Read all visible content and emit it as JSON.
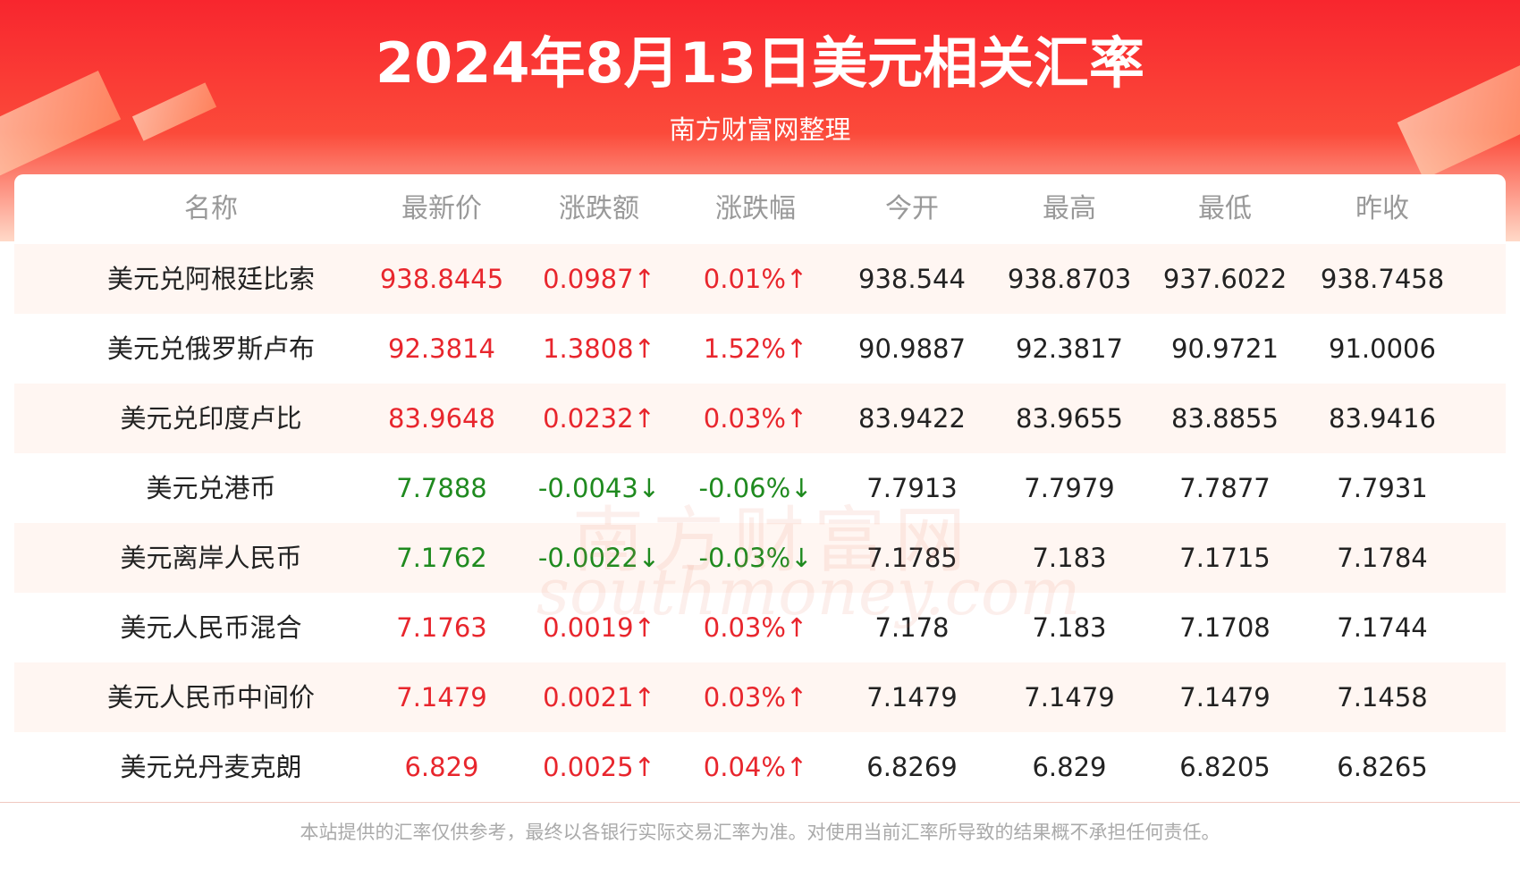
{
  "header": {
    "title": "2024年8月13日美元相关汇率",
    "subtitle": "南方财富网整理"
  },
  "table": {
    "columns": [
      "名称",
      "最新价",
      "涨跌额",
      "涨跌幅",
      "今开",
      "最高",
      "最低",
      "昨收"
    ],
    "rows": [
      {
        "cells": [
          "美元兑阿根廷比索",
          "938.8445",
          "0.0987↑",
          "0.01%↑",
          "938.544",
          "938.8703",
          "937.6022",
          "938.7458"
        ],
        "color": "#e8262d"
      },
      {
        "cells": [
          "美元兑俄罗斯卢布",
          "92.3814",
          "1.3808↑",
          "1.52%↑",
          "90.9887",
          "92.3817",
          "90.9721",
          "91.0006"
        ],
        "color": "#e8262d"
      },
      {
        "cells": [
          "美元兑印度卢比",
          "83.9648",
          "0.0232↑",
          "0.03%↑",
          "83.9422",
          "83.9655",
          "83.8855",
          "83.9416"
        ],
        "color": "#e8262d"
      },
      {
        "cells": [
          "美元兑港币",
          "7.7888",
          "-0.0043↓",
          "-0.06%↓",
          "7.7913",
          "7.7979",
          "7.7877",
          "7.7931"
        ],
        "color": "#1f8a1f"
      },
      {
        "cells": [
          "美元离岸人民币",
          "7.1762",
          "-0.0022↓",
          "-0.03%↓",
          "7.1785",
          "7.183",
          "7.1715",
          "7.1784"
        ],
        "color": "#1f8a1f"
      },
      {
        "cells": [
          "美元人民币混合",
          "7.1763",
          "0.0019↑",
          "0.03%↑",
          "7.178",
          "7.183",
          "7.1708",
          "7.1744"
        ],
        "color": "#e8262d"
      },
      {
        "cells": [
          "美元人民币中间价",
          "7.1479",
          "0.0021↑",
          "0.03%↑",
          "7.1479",
          "7.1479",
          "7.1479",
          "7.1458"
        ],
        "color": "#e8262d"
      },
      {
        "cells": [
          "美元兑丹麦克朗",
          "6.829",
          "0.0025↑",
          "0.04%↑",
          "6.8269",
          "6.829",
          "6.8205",
          "6.8265"
        ],
        "color": "#e8262d"
      }
    ]
  },
  "watermark": {
    "cn": "南方财富网",
    "en": "southmoney.com"
  },
  "footer": {
    "note": "本站提供的汇率仅供参考，最终以各银行实际交易汇率为准。对使用当前汇率所导致的结果概不承担任何责任。"
  }
}
